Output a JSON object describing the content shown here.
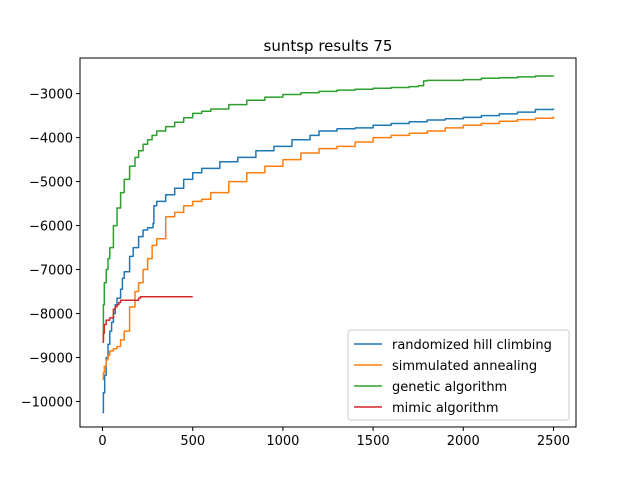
{
  "chart_data": {
    "type": "line",
    "title": "suntsp results 75",
    "xlabel": "",
    "ylabel": "",
    "xlim": [
      -125,
      2625
    ],
    "ylim": [
      -10580,
      -2190
    ],
    "xticks": [
      0,
      500,
      1000,
      1500,
      2000,
      2500
    ],
    "yticks": [
      -10000,
      -9000,
      -8000,
      -7000,
      -6000,
      -5000,
      -4000,
      -3000
    ],
    "xtick_labels": [
      "0",
      "500",
      "1000",
      "1500",
      "2000",
      "2500"
    ],
    "ytick_labels": [
      "−10000",
      "−9000",
      "−8000",
      "−7000",
      "−6000",
      "−5000",
      "−4000",
      "−3000"
    ],
    "grid": false,
    "legend_position": "lower-right",
    "series": [
      {
        "name": "randomized hill climbing",
        "color": "#1f77b4",
        "x": [
          0,
          5,
          12,
          20,
          30,
          40,
          50,
          60,
          70,
          80,
          100,
          110,
          120,
          150,
          170,
          200,
          225,
          250,
          280,
          285,
          300,
          350,
          400,
          450,
          500,
          550,
          650,
          750,
          850,
          950,
          1050,
          1150,
          1200,
          1300,
          1400,
          1500,
          1600,
          1700,
          1800,
          1900,
          2000,
          2100,
          2200,
          2300,
          2400,
          2500
        ],
        "y": [
          -10250,
          -9800,
          -9400,
          -9000,
          -8700,
          -8400,
          -8200,
          -8000,
          -7800,
          -7650,
          -7450,
          -7200,
          -7050,
          -6700,
          -6500,
          -6250,
          -6100,
          -6050,
          -5950,
          -5550,
          -5450,
          -5300,
          -5150,
          -4950,
          -4800,
          -4700,
          -4550,
          -4450,
          -4300,
          -4200,
          -4050,
          -3950,
          -3850,
          -3800,
          -3780,
          -3720,
          -3680,
          -3640,
          -3600,
          -3570,
          -3540,
          -3500,
          -3460,
          -3420,
          -3360,
          -3340
        ]
      },
      {
        "name": "simmulated annealing",
        "color": "#ff7f0e",
        "x": [
          0,
          5,
          10,
          20,
          30,
          40,
          50,
          60,
          80,
          100,
          120,
          150,
          180,
          200,
          225,
          250,
          275,
          300,
          350,
          400,
          450,
          500,
          550,
          600,
          700,
          800,
          900,
          1000,
          1100,
          1200,
          1300,
          1400,
          1500,
          1600,
          1700,
          1800,
          1900,
          2000,
          2100,
          2200,
          2300,
          2400,
          2500
        ],
        "y": [
          -9500,
          -9350,
          -9200,
          -9050,
          -8950,
          -8850,
          -8850,
          -8800,
          -8750,
          -8600,
          -8400,
          -7850,
          -7500,
          -7300,
          -7000,
          -6750,
          -6450,
          -6300,
          -5800,
          -5700,
          -5550,
          -5450,
          -5400,
          -5250,
          -5000,
          -4800,
          -4650,
          -4500,
          -4350,
          -4250,
          -4200,
          -4100,
          -4000,
          -3950,
          -3900,
          -3850,
          -3780,
          -3720,
          -3680,
          -3630,
          -3590,
          -3560,
          -3520
        ]
      },
      {
        "name": "genetic algorithm",
        "color": "#2ca02c",
        "x": [
          0,
          5,
          10,
          20,
          30,
          40,
          60,
          80,
          100,
          120,
          150,
          180,
          200,
          225,
          250,
          275,
          300,
          350,
          400,
          450,
          500,
          550,
          600,
          700,
          800,
          900,
          1000,
          1100,
          1200,
          1300,
          1400,
          1500,
          1600,
          1700,
          1750,
          1780,
          1800,
          1900,
          2000,
          2100,
          2200,
          2300,
          2400,
          2500
        ],
        "y": [
          -8600,
          -7800,
          -7300,
          -7000,
          -6750,
          -6500,
          -6000,
          -5600,
          -5250,
          -4950,
          -4650,
          -4450,
          -4300,
          -4150,
          -4050,
          -3950,
          -3850,
          -3750,
          -3650,
          -3550,
          -3450,
          -3400,
          -3350,
          -3250,
          -3150,
          -3080,
          -3020,
          -2980,
          -2950,
          -2920,
          -2900,
          -2880,
          -2860,
          -2840,
          -2820,
          -2710,
          -2700,
          -2700,
          -2680,
          -2650,
          -2640,
          -2620,
          -2600,
          -2590
        ]
      },
      {
        "name": "mimic algorithm",
        "color": "#d62728",
        "x": [
          0,
          5,
          10,
          20,
          40,
          50,
          60,
          70,
          80,
          90,
          100,
          110,
          150,
          200,
          210,
          300,
          400,
          500
        ],
        "y": [
          -8650,
          -8450,
          -8250,
          -8150,
          -8100,
          -8100,
          -7900,
          -7850,
          -7800,
          -7750,
          -7700,
          -7700,
          -7700,
          -7650,
          -7620,
          -7620,
          -7620,
          -7620
        ]
      }
    ]
  }
}
